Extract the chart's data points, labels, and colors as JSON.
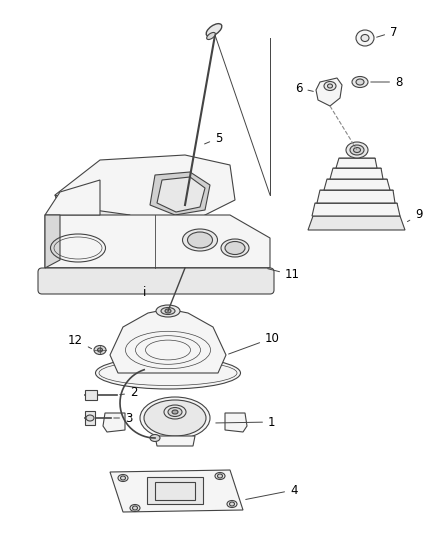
{
  "bg_color": "#ffffff",
  "line_color": "#444444",
  "label_color": "#000000",
  "font_size": 8.5,
  "line_width": 0.8
}
